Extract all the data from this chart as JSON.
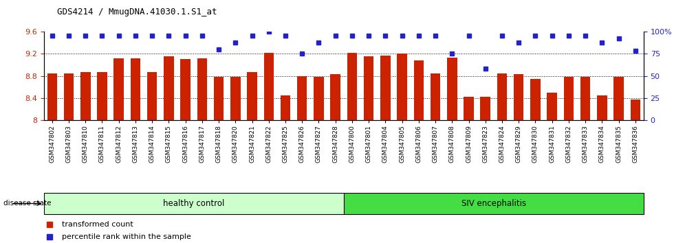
{
  "title": "GDS4214 / MmugDNA.41030.1.S1_at",
  "samples": [
    "GSM347802",
    "GSM347803",
    "GSM347810",
    "GSM347811",
    "GSM347812",
    "GSM347813",
    "GSM347814",
    "GSM347815",
    "GSM347816",
    "GSM347817",
    "GSM347818",
    "GSM347820",
    "GSM347821",
    "GSM347822",
    "GSM347825",
    "GSM347826",
    "GSM347827",
    "GSM347828",
    "GSM347800",
    "GSM347801",
    "GSM347804",
    "GSM347805",
    "GSM347806",
    "GSM347807",
    "GSM347808",
    "GSM347809",
    "GSM347823",
    "GSM347824",
    "GSM347829",
    "GSM347830",
    "GSM347831",
    "GSM347832",
    "GSM347833",
    "GSM347834",
    "GSM347835",
    "GSM347836"
  ],
  "bar_values": [
    8.85,
    8.85,
    8.87,
    8.87,
    9.12,
    9.12,
    8.87,
    9.15,
    9.1,
    9.12,
    8.78,
    8.78,
    8.87,
    9.22,
    8.45,
    8.8,
    8.78,
    8.83,
    9.22,
    9.15,
    9.17,
    9.2,
    9.08,
    8.85,
    9.13,
    8.42,
    8.43,
    8.85,
    8.83,
    8.75,
    8.5,
    8.78,
    8.78,
    8.45,
    8.78,
    8.38
  ],
  "percentile_values": [
    95,
    95,
    95,
    95,
    95,
    95,
    95,
    95,
    95,
    95,
    80,
    88,
    95,
    100,
    95,
    75,
    88,
    95,
    95,
    95,
    95,
    95,
    95,
    95,
    75,
    95,
    58,
    95,
    88,
    95,
    95,
    95,
    95,
    88,
    92,
    78
  ],
  "healthy_count": 18,
  "group1_label": "healthy control",
  "group2_label": "SIV encephalitis",
  "disease_state_label": "disease state",
  "ylim_left": [
    8.0,
    9.6
  ],
  "ylim_right": [
    0,
    100
  ],
  "yticks_left": [
    8.0,
    8.4,
    8.8,
    9.2,
    9.6
  ],
  "ytick_labels_left": [
    "8",
    "8.4",
    "8.8",
    "9.2",
    "9.6"
  ],
  "yticks_right": [
    0,
    25,
    50,
    75,
    100
  ],
  "ytick_labels_right": [
    "0",
    "25",
    "50",
    "75",
    "100%"
  ],
  "bar_color": "#cc2200",
  "dot_color": "#2222cc",
  "group1_color": "#ccffcc",
  "group2_color": "#44dd44",
  "bar_width": 0.6,
  "grid_lines": [
    8.4,
    8.8,
    9.2
  ],
  "legend_items": [
    {
      "label": "transformed count",
      "color": "#cc2200"
    },
    {
      "label": "percentile rank within the sample",
      "color": "#2222cc"
    }
  ]
}
